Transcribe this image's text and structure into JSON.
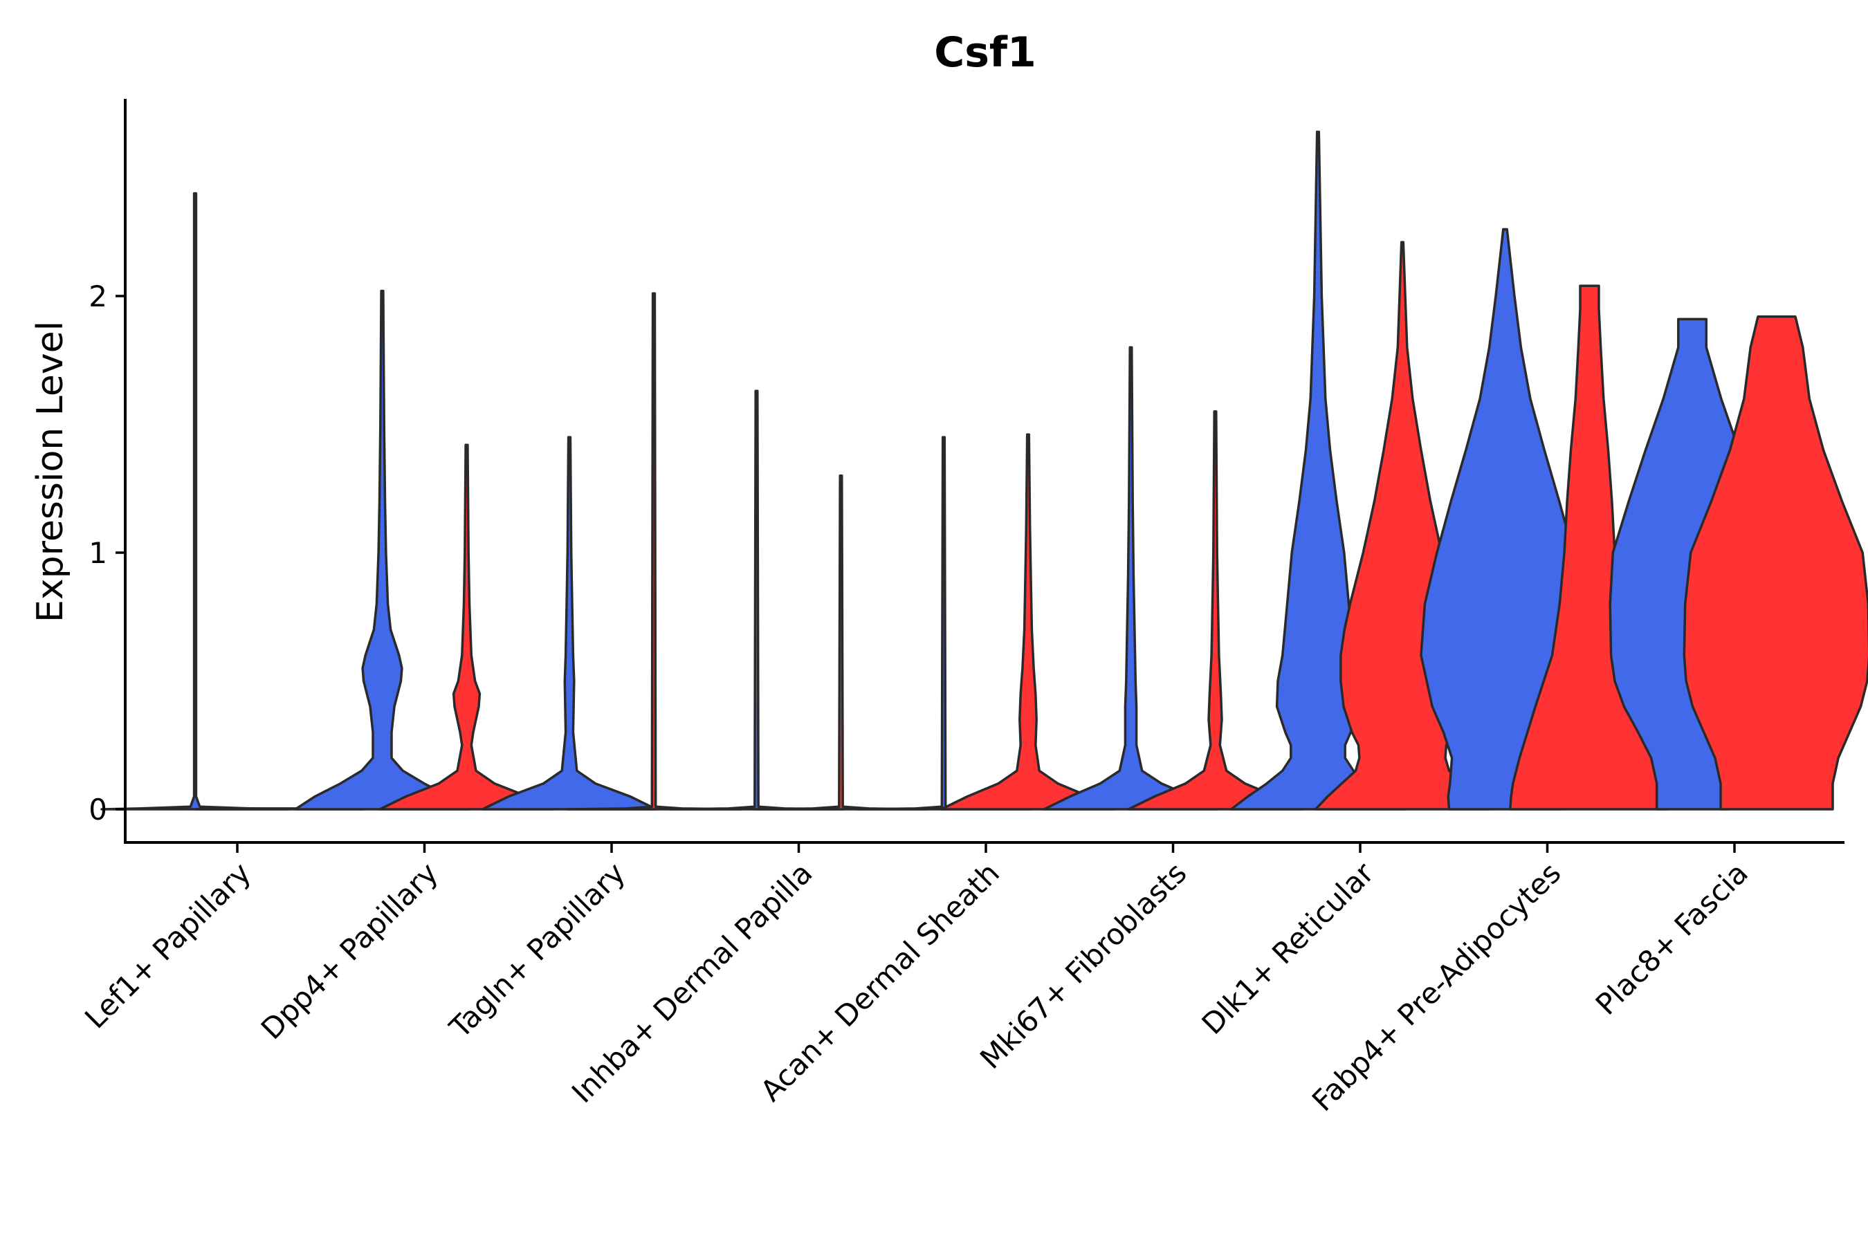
{
  "chart_data": {
    "type": "violin",
    "title": "Csf1",
    "xlabel": "",
    "ylabel": "Expression Level",
    "ylim": [
      -0.13,
      2.77
    ],
    "yticks": [
      0,
      1,
      2
    ],
    "grid": false,
    "legend": "none",
    "series_colors": {
      "blue": "#4169E9",
      "red": "#FF3333"
    },
    "categories": [
      "Lef1+ Papillary",
      "Dpp4+ Papillary",
      "Tagln+ Papillary",
      "Inhba+ Dermal Papilla",
      "Acan+ Dermal Sheath",
      "Mki67+ Fibroblasts",
      "Dlk1+ Reticular",
      "Fabp4+ Pre-Adipocytes",
      "Plac8+ Fascia"
    ],
    "violins": [
      {
        "category": 0,
        "group": "blue",
        "max": 2.4,
        "profile": [
          [
            0,
            1
          ],
          [
            0.003,
            0.6
          ],
          [
            0.01,
            0.05
          ],
          [
            0.05,
            0.01
          ],
          [
            2.4,
            0.01
          ]
        ]
      },
      {
        "category": 0,
        "group": "red",
        "max": 0.0,
        "profile": [
          [
            0,
            0.9
          ],
          [
            0.003,
            0.3
          ]
        ]
      },
      {
        "category": 1,
        "group": "blue",
        "max": 2.02,
        "profile": [
          [
            0,
            0.93
          ],
          [
            0.05,
            0.72
          ],
          [
            0.1,
            0.45
          ],
          [
            0.15,
            0.22
          ],
          [
            0.2,
            0.1
          ],
          [
            0.3,
            0.1
          ],
          [
            0.4,
            0.13
          ],
          [
            0.5,
            0.2
          ],
          [
            0.55,
            0.21
          ],
          [
            0.6,
            0.18
          ],
          [
            0.7,
            0.09
          ],
          [
            0.8,
            0.06
          ],
          [
            1.0,
            0.04
          ],
          [
            1.2,
            0.03
          ],
          [
            1.5,
            0.02
          ],
          [
            2.02,
            0.01
          ]
        ]
      },
      {
        "category": 1,
        "group": "red",
        "max": 1.42,
        "profile": [
          [
            0,
            0.93
          ],
          [
            0.05,
            0.65
          ],
          [
            0.1,
            0.3
          ],
          [
            0.15,
            0.1
          ],
          [
            0.25,
            0.05
          ],
          [
            0.3,
            0.07
          ],
          [
            0.4,
            0.13
          ],
          [
            0.45,
            0.14
          ],
          [
            0.5,
            0.09
          ],
          [
            0.6,
            0.05
          ],
          [
            0.8,
            0.03
          ],
          [
            1.0,
            0.02
          ],
          [
            1.42,
            0.01
          ]
        ]
      },
      {
        "category": 2,
        "group": "blue",
        "max": 1.45,
        "profile": [
          [
            0,
            0.93
          ],
          [
            0.05,
            0.65
          ],
          [
            0.1,
            0.28
          ],
          [
            0.15,
            0.08
          ],
          [
            0.3,
            0.04
          ],
          [
            0.5,
            0.05
          ],
          [
            0.6,
            0.04
          ],
          [
            0.8,
            0.03
          ],
          [
            1.0,
            0.02
          ],
          [
            1.45,
            0.01
          ]
        ]
      },
      {
        "category": 2,
        "group": "red",
        "max": 2.01,
        "profile": [
          [
            0,
            0.93
          ],
          [
            0.003,
            0.3
          ],
          [
            0.01,
            0.02
          ],
          [
            2.01,
            0.01
          ]
        ]
      },
      {
        "category": 3,
        "group": "blue",
        "max": 1.63,
        "profile": [
          [
            0,
            0.93
          ],
          [
            0.003,
            0.3
          ],
          [
            0.01,
            0.02
          ],
          [
            1.63,
            0.01
          ]
        ]
      },
      {
        "category": 3,
        "group": "red",
        "max": 1.3,
        "profile": [
          [
            0,
            0.93
          ],
          [
            0.003,
            0.3
          ],
          [
            0.01,
            0.02
          ],
          [
            1.3,
            0.01
          ]
        ]
      },
      {
        "category": 4,
        "group": "blue",
        "max": 1.45,
        "profile": [
          [
            0,
            0.93
          ],
          [
            0.003,
            0.3
          ],
          [
            0.01,
            0.02
          ],
          [
            1.45,
            0.01
          ]
        ]
      },
      {
        "category": 4,
        "group": "red",
        "max": 1.46,
        "profile": [
          [
            0,
            0.93
          ],
          [
            0.05,
            0.65
          ],
          [
            0.1,
            0.32
          ],
          [
            0.15,
            0.12
          ],
          [
            0.25,
            0.08
          ],
          [
            0.35,
            0.09
          ],
          [
            0.45,
            0.08
          ],
          [
            0.55,
            0.06
          ],
          [
            0.7,
            0.04
          ],
          [
            0.9,
            0.03
          ],
          [
            1.1,
            0.02
          ],
          [
            1.46,
            0.01
          ]
        ]
      },
      {
        "category": 5,
        "group": "blue",
        "max": 1.8,
        "profile": [
          [
            0,
            0.93
          ],
          [
            0.05,
            0.65
          ],
          [
            0.1,
            0.33
          ],
          [
            0.15,
            0.12
          ],
          [
            0.25,
            0.06
          ],
          [
            0.4,
            0.06
          ],
          [
            0.5,
            0.05
          ],
          [
            0.7,
            0.04
          ],
          [
            0.9,
            0.03
          ],
          [
            1.2,
            0.02
          ],
          [
            1.8,
            0.01
          ]
        ]
      },
      {
        "category": 5,
        "group": "red",
        "max": 1.55,
        "profile": [
          [
            0,
            0.93
          ],
          [
            0.05,
            0.65
          ],
          [
            0.1,
            0.32
          ],
          [
            0.15,
            0.12
          ],
          [
            0.25,
            0.05
          ],
          [
            0.35,
            0.07
          ],
          [
            0.45,
            0.06
          ],
          [
            0.6,
            0.04
          ],
          [
            0.8,
            0.03
          ],
          [
            1.0,
            0.02
          ],
          [
            1.55,
            0.01
          ]
        ]
      },
      {
        "category": 6,
        "group": "blue",
        "max": 2.64,
        "profile": [
          [
            0,
            0.93
          ],
          [
            0.05,
            0.75
          ],
          [
            0.1,
            0.55
          ],
          [
            0.15,
            0.38
          ],
          [
            0.2,
            0.29
          ],
          [
            0.25,
            0.29
          ],
          [
            0.3,
            0.35
          ],
          [
            0.4,
            0.44
          ],
          [
            0.5,
            0.43
          ],
          [
            0.6,
            0.38
          ],
          [
            0.8,
            0.33
          ],
          [
            1.0,
            0.28
          ],
          [
            1.2,
            0.2
          ],
          [
            1.4,
            0.13
          ],
          [
            1.6,
            0.08
          ],
          [
            2.0,
            0.04
          ],
          [
            2.64,
            0.01
          ]
        ]
      },
      {
        "category": 6,
        "group": "red",
        "max": 2.21,
        "profile": [
          [
            0,
            0.93
          ],
          [
            0.05,
            0.8
          ],
          [
            0.1,
            0.65
          ],
          [
            0.15,
            0.5
          ],
          [
            0.2,
            0.46
          ],
          [
            0.25,
            0.47
          ],
          [
            0.3,
            0.54
          ],
          [
            0.4,
            0.63
          ],
          [
            0.5,
            0.66
          ],
          [
            0.6,
            0.66
          ],
          [
            0.7,
            0.62
          ],
          [
            0.8,
            0.56
          ],
          [
            1.0,
            0.42
          ],
          [
            1.2,
            0.3
          ],
          [
            1.4,
            0.2
          ],
          [
            1.6,
            0.11
          ],
          [
            1.8,
            0.05
          ],
          [
            2.21,
            0.01
          ]
        ]
      },
      {
        "category": 7,
        "group": "blue",
        "max": 2.26,
        "profile": [
          [
            0,
            0.6
          ],
          [
            0.05,
            0.61
          ],
          [
            0.1,
            0.59
          ],
          [
            0.2,
            0.57
          ],
          [
            0.3,
            0.66
          ],
          [
            0.4,
            0.78
          ],
          [
            0.6,
            0.9
          ],
          [
            0.8,
            0.86
          ],
          [
            1.0,
            0.73
          ],
          [
            1.2,
            0.58
          ],
          [
            1.4,
            0.42
          ],
          [
            1.6,
            0.27
          ],
          [
            1.8,
            0.17
          ],
          [
            2.0,
            0.1
          ],
          [
            2.26,
            0.02
          ]
        ]
      },
      {
        "category": 7,
        "group": "red",
        "max": 2.04,
        "profile": [
          [
            0,
            0.85
          ],
          [
            0.05,
            0.84
          ],
          [
            0.1,
            0.82
          ],
          [
            0.2,
            0.75
          ],
          [
            0.4,
            0.58
          ],
          [
            0.6,
            0.4
          ],
          [
            0.8,
            0.32
          ],
          [
            1.0,
            0.27
          ],
          [
            1.2,
            0.24
          ],
          [
            1.4,
            0.2
          ],
          [
            1.6,
            0.15
          ],
          [
            1.8,
            0.12
          ],
          [
            1.95,
            0.1
          ],
          [
            2.04,
            0.1
          ]
        ]
      },
      {
        "category": 8,
        "group": "blue",
        "max": 1.91,
        "profile": [
          [
            0,
            0.38
          ],
          [
            0.1,
            0.38
          ],
          [
            0.2,
            0.44
          ],
          [
            0.3,
            0.58
          ],
          [
            0.4,
            0.73
          ],
          [
            0.5,
            0.83
          ],
          [
            0.6,
            0.87
          ],
          [
            0.8,
            0.88
          ],
          [
            1.0,
            0.85
          ],
          [
            1.2,
            0.68
          ],
          [
            1.4,
            0.5
          ],
          [
            1.6,
            0.31
          ],
          [
            1.8,
            0.15
          ],
          [
            1.91,
            0.15
          ]
        ]
      },
      {
        "category": 8,
        "group": "red",
        "max": 1.92,
        "profile": [
          [
            0,
            0.6
          ],
          [
            0.1,
            0.6
          ],
          [
            0.2,
            0.66
          ],
          [
            0.3,
            0.78
          ],
          [
            0.4,
            0.9
          ],
          [
            0.5,
            0.97
          ],
          [
            0.6,
            0.99
          ],
          [
            0.8,
            0.98
          ],
          [
            1.0,
            0.92
          ],
          [
            1.2,
            0.7
          ],
          [
            1.4,
            0.5
          ],
          [
            1.6,
            0.35
          ],
          [
            1.8,
            0.28
          ],
          [
            1.92,
            0.2
          ]
        ]
      }
    ]
  }
}
